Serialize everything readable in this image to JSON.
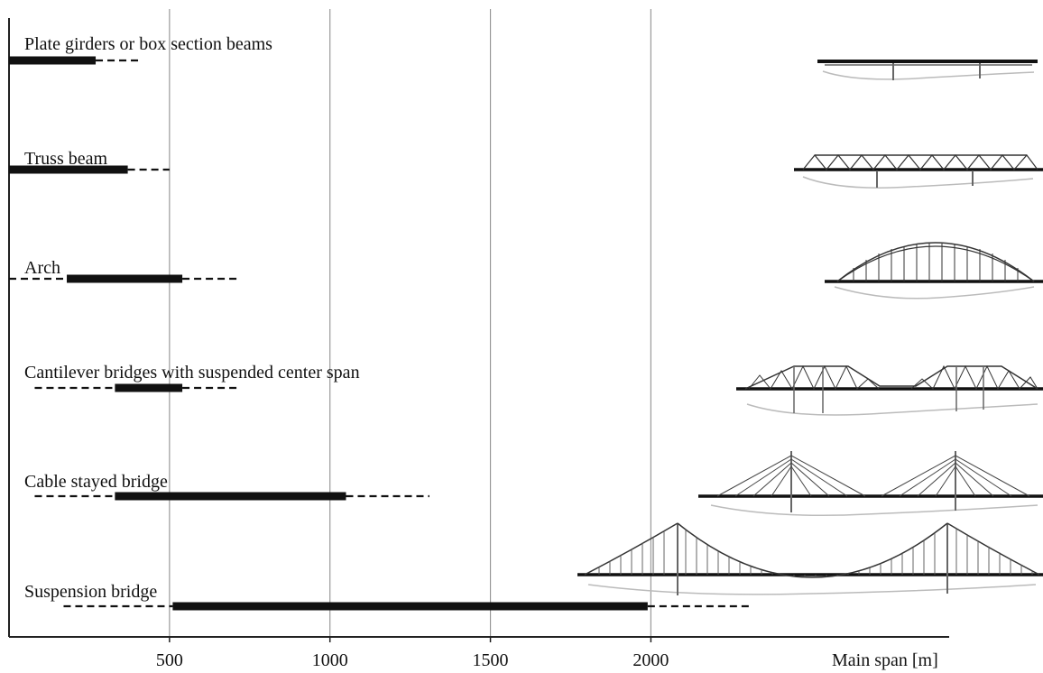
{
  "chart_data": {
    "type": "bar",
    "subtype": "range-bar",
    "xlabel": "Main span [m]",
    "ylabel": "",
    "title": "",
    "xlim": [
      0,
      2950
    ],
    "grid": true,
    "x_ticks": [
      500,
      1000,
      1500,
      2000
    ],
    "x_tick_labels": [
      "500",
      "1000",
      "1500",
      "2000"
    ],
    "categories": [
      {
        "label": "Plate girders or box section beams",
        "solid": [
          0,
          270
        ],
        "dashed": [
          [
            270,
            410
          ]
        ],
        "illustration": "plate-girder-bridge-icon"
      },
      {
        "label": "Truss beam",
        "solid": [
          0,
          370
        ],
        "dashed": [
          [
            370,
            500
          ]
        ],
        "illustration": "truss-bridge-icon"
      },
      {
        "label": "Arch",
        "solid": [
          180,
          540
        ],
        "dashed": [
          [
            0,
            180
          ],
          [
            540,
            720
          ]
        ],
        "illustration": "arch-bridge-icon"
      },
      {
        "label": "Cantilever bridges with suspended center span",
        "solid": [
          330,
          540
        ],
        "dashed": [
          [
            80,
            330
          ],
          [
            540,
            720
          ]
        ],
        "illustration": "cantilever-bridge-icon"
      },
      {
        "label": "Cable stayed bridge",
        "solid": [
          330,
          1050
        ],
        "dashed": [
          [
            80,
            330
          ],
          [
            1050,
            1310
          ]
        ],
        "illustration": "cable-stayed-bridge-icon"
      },
      {
        "label": "Suspension bridge",
        "solid": [
          510,
          1990
        ],
        "dashed": [
          [
            170,
            510
          ],
          [
            1990,
            2310
          ]
        ],
        "illustration": "suspension-bridge-icon"
      }
    ]
  }
}
